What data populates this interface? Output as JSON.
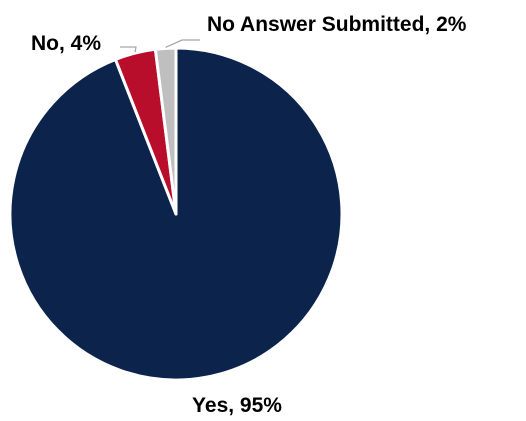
{
  "chart_data": {
    "type": "pie",
    "title": "",
    "start_angle_deg": 0,
    "direction": "clockwise",
    "slices": [
      {
        "label": "Yes",
        "value": 95,
        "value_label": "95%",
        "color": "#0c234b"
      },
      {
        "label": "No",
        "value": 4,
        "value_label": "4%",
        "color": "#b80d2b"
      },
      {
        "label": "No Answer Submitted",
        "value": 2,
        "value_label": "2%",
        "color": "#bfbfbf"
      }
    ],
    "label_style": "category-and-value",
    "legend": "none"
  }
}
